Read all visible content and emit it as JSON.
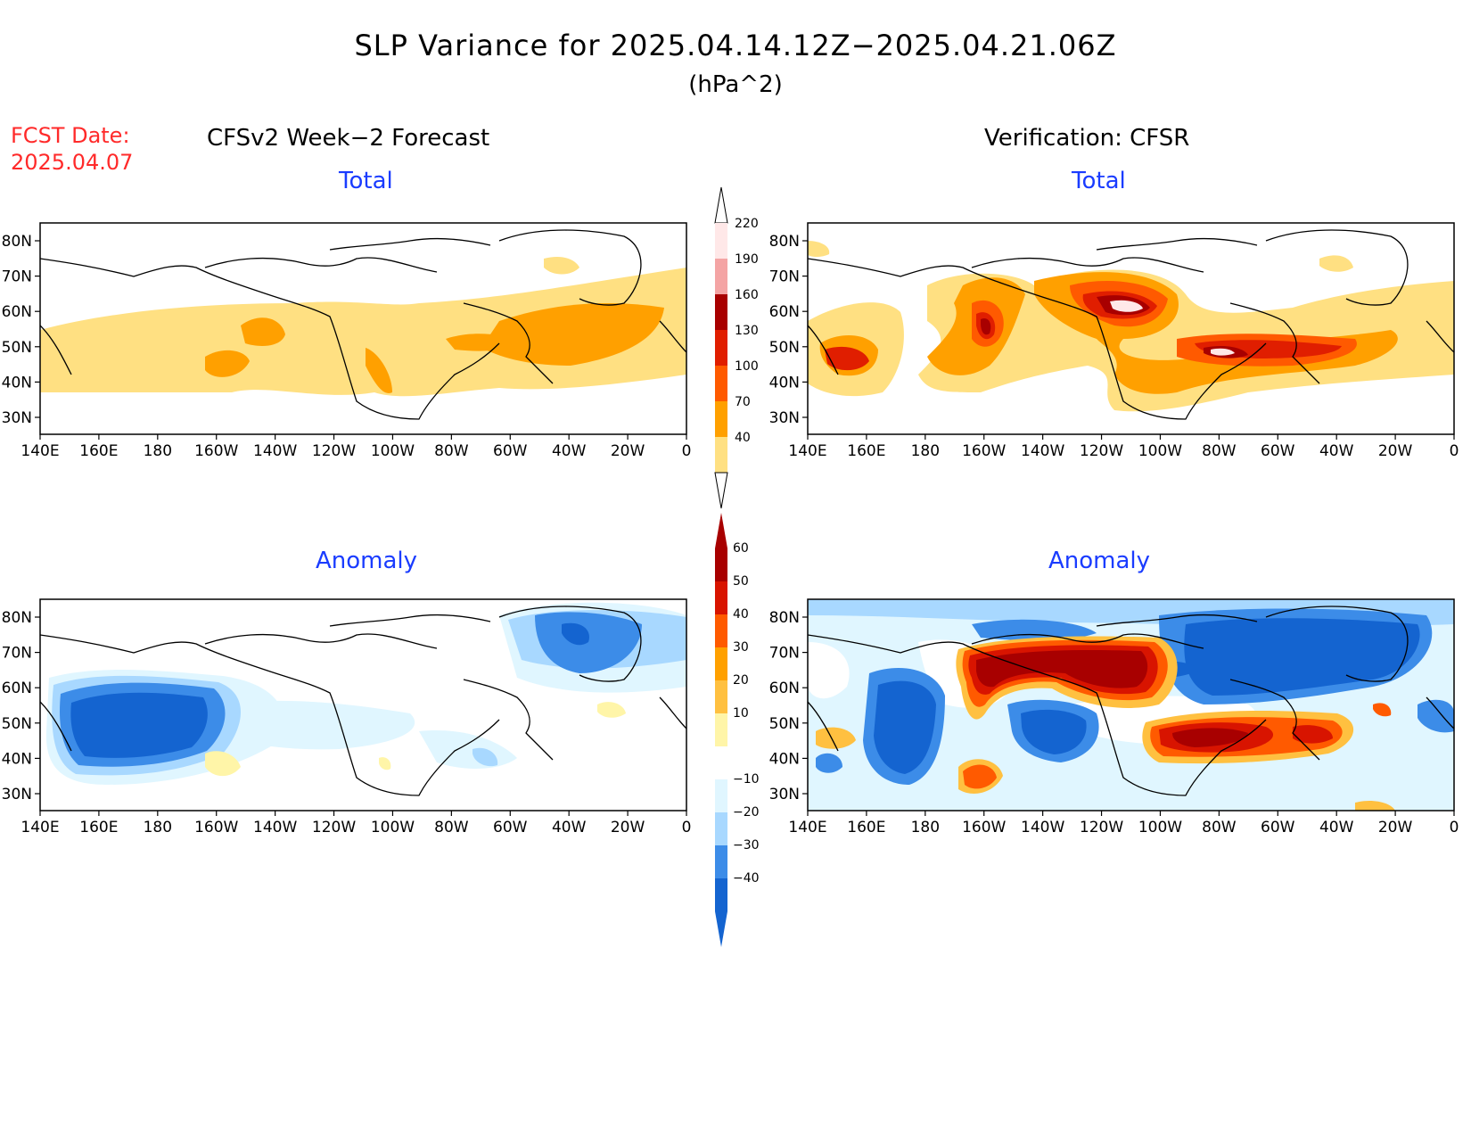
{
  "title": "SLP Variance for 2025.04.14.12Z−2025.04.21.06Z",
  "units": "(hPa^2)",
  "fcst": {
    "label": "FCST Date:",
    "date": "2025.04.07"
  },
  "columns": {
    "left": "CFSv2 Week−2 Forecast",
    "right": "Verification: CFSR"
  },
  "panels": {
    "tl": {
      "title": "Total"
    },
    "tr": {
      "title": "Total"
    },
    "bl": {
      "title": "Anomaly"
    },
    "br": {
      "title": "Anomaly"
    }
  },
  "axes": {
    "lat_labels": [
      "80N",
      "70N",
      "60N",
      "50N",
      "40N",
      "30N"
    ],
    "lon_labels": [
      "140E",
      "160E",
      "180",
      "160W",
      "140W",
      "120W",
      "100W",
      "80W",
      "60W",
      "40W",
      "20W",
      "0"
    ]
  },
  "colorbar_total": {
    "labels": [
      "220",
      "190",
      "160",
      "130",
      "100",
      "70",
      "40"
    ],
    "colors": [
      "#ffe8e8",
      "#f4a4a4",
      "#a80000",
      "#e01e00",
      "#ff5a00",
      "#ffa000",
      "#ffe082"
    ]
  },
  "colorbar_anomaly": {
    "labels": [
      "60",
      "50",
      "40",
      "30",
      "20",
      "10",
      "−10",
      "−20",
      "−30",
      "−40"
    ],
    "colors": [
      "#a80000",
      "#d81400",
      "#ff5a00",
      "#ffa000",
      "#ffc040",
      "#fff5a8",
      "#ffffff",
      "#e0f6ff",
      "#a8d8ff",
      "#3c8ce8",
      "#1464d0"
    ]
  },
  "map_colors": {
    "coast": "#000000",
    "frame": "#000000"
  }
}
